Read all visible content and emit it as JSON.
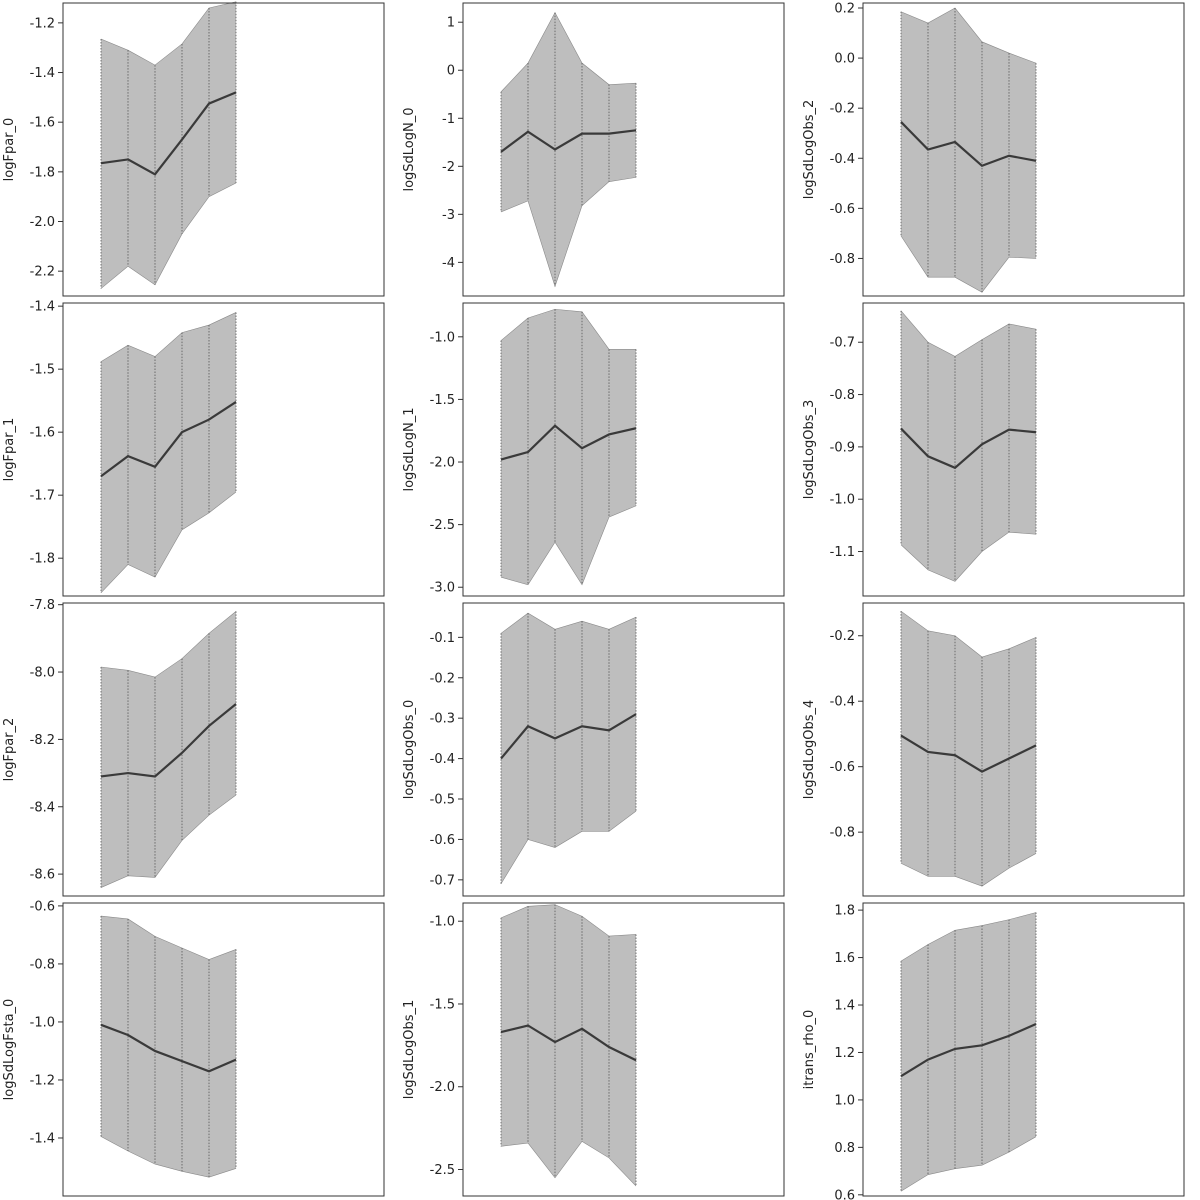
{
  "chart_data": [
    {
      "type": "line",
      "ylabel": "logFpar_0",
      "ylim": [
        -2.3,
        -1.12
      ],
      "yticks": [
        -2.2,
        -2.0,
        -1.8,
        -1.6,
        -1.4,
        -1.2
      ],
      "series": [
        {
          "mean": [
            -1.765,
            -1.75,
            -1.81,
            -1.67,
            -1.525,
            -1.48
          ],
          "lower": [
            -2.27,
            -2.18,
            -2.255,
            -2.05,
            -1.9,
            -1.845
          ],
          "upper": [
            -1.265,
            -1.31,
            -1.37,
            -1.285,
            -1.14,
            -1.115
          ]
        }
      ]
    },
    {
      "type": "line",
      "ylabel": "logSdLogN_0",
      "ylim": [
        -4.7,
        1.4
      ],
      "yticks": [
        -4,
        -3,
        -2,
        -1,
        0,
        1
      ],
      "series": [
        {
          "mean": [
            -1.7,
            -1.28,
            -1.65,
            -1.32,
            -1.32,
            -1.25
          ],
          "lower": [
            -2.95,
            -2.72,
            -4.5,
            -2.82,
            -2.32,
            -2.23
          ],
          "upper": [
            -0.45,
            0.15,
            1.2,
            0.15,
            -0.3,
            -0.27
          ]
        }
      ]
    },
    {
      "type": "line",
      "ylabel": "logSdLogObs_2",
      "ylim": [
        -0.95,
        0.22
      ],
      "yticks": [
        -0.8,
        -0.6,
        -0.4,
        -0.2,
        0.0,
        0.2
      ],
      "series": [
        {
          "mean": [
            -0.255,
            -0.365,
            -0.335,
            -0.43,
            -0.39,
            -0.41
          ],
          "lower": [
            -0.71,
            -0.875,
            -0.875,
            -0.935,
            -0.795,
            -0.8
          ],
          "upper": [
            0.185,
            0.14,
            0.2,
            0.065,
            0.02,
            -0.02
          ]
        }
      ]
    },
    {
      "type": "line",
      "ylabel": "logFpar_1",
      "ylim": [
        -1.86,
        -1.395
      ],
      "yticks": [
        -1.8,
        -1.7,
        -1.6,
        -1.5,
        -1.4
      ],
      "series": [
        {
          "mean": [
            -1.67,
            -1.638,
            -1.655,
            -1.6,
            -1.58,
            -1.552
          ],
          "lower": [
            -1.855,
            -1.81,
            -1.83,
            -1.755,
            -1.728,
            -1.695
          ],
          "upper": [
            -1.488,
            -1.462,
            -1.48,
            -1.442,
            -1.43,
            -1.41
          ]
        }
      ]
    },
    {
      "type": "line",
      "ylabel": "logSdLogN_1",
      "ylim": [
        -3.07,
        -0.73
      ],
      "yticks": [
        -3.0,
        -2.5,
        -2.0,
        -1.5,
        -1.0
      ],
      "series": [
        {
          "mean": [
            -1.98,
            -1.92,
            -1.71,
            -1.89,
            -1.78,
            -1.73
          ],
          "lower": [
            -2.92,
            -2.98,
            -2.64,
            -2.98,
            -2.44,
            -2.35
          ],
          "upper": [
            -1.03,
            -0.85,
            -0.78,
            -0.8,
            -1.1,
            -1.1
          ]
        }
      ]
    },
    {
      "type": "line",
      "ylabel": "logSdLogObs_3",
      "ylim": [
        -1.185,
        -0.625
      ],
      "yticks": [
        -1.1,
        -1.0,
        -0.9,
        -0.8,
        -0.7
      ],
      "series": [
        {
          "mean": [
            -0.865,
            -0.918,
            -0.94,
            -0.895,
            -0.867,
            -0.872
          ],
          "lower": [
            -1.087,
            -1.135,
            -1.157,
            -1.1,
            -1.063,
            -1.067
          ],
          "upper": [
            -0.64,
            -0.7,
            -0.727,
            -0.695,
            -0.665,
            -0.675
          ]
        }
      ]
    },
    {
      "type": "line",
      "ylabel": "logFpar_2",
      "ylim": [
        -8.665,
        -7.795
      ],
      "yticks": [
        -8.6,
        -8.4,
        -8.2,
        -8.0,
        -7.8
      ],
      "series": [
        {
          "mean": [
            -8.31,
            -8.3,
            -8.31,
            -8.24,
            -8.16,
            -8.095
          ],
          "lower": [
            -8.64,
            -8.605,
            -8.61,
            -8.5,
            -8.425,
            -8.365
          ],
          "upper": [
            -7.985,
            -7.995,
            -8.015,
            -7.96,
            -7.885,
            -7.82
          ]
        }
      ]
    },
    {
      "type": "line",
      "ylabel": "logSdLogObs_0",
      "ylim": [
        -0.74,
        -0.015
      ],
      "yticks": [
        -0.7,
        -0.6,
        -0.5,
        -0.4,
        -0.3,
        -0.2,
        -0.1
      ],
      "series": [
        {
          "mean": [
            -0.4,
            -0.32,
            -0.35,
            -0.32,
            -0.33,
            -0.29
          ],
          "lower": [
            -0.71,
            -0.6,
            -0.62,
            -0.58,
            -0.58,
            -0.53
          ],
          "upper": [
            -0.09,
            -0.04,
            -0.08,
            -0.06,
            -0.08,
            -0.05
          ]
        }
      ]
    },
    {
      "type": "line",
      "ylabel": "logSdLogObs_4",
      "ylim": [
        -0.995,
        -0.1
      ],
      "yticks": [
        -0.8,
        -0.6,
        -0.4,
        -0.2
      ],
      "series": [
        {
          "mean": [
            -0.505,
            -0.555,
            -0.565,
            -0.615,
            -0.575,
            -0.535
          ],
          "lower": [
            -0.895,
            -0.935,
            -0.935,
            -0.965,
            -0.91,
            -0.865
          ],
          "upper": [
            -0.125,
            -0.185,
            -0.2,
            -0.265,
            -0.24,
            -0.205
          ]
        }
      ]
    },
    {
      "type": "line",
      "ylabel": "logSdLogFsta_0",
      "ylim": [
        -1.6,
        -0.59
      ],
      "yticks": [
        -1.4,
        -1.2,
        -1.0,
        -0.8,
        -0.6
      ],
      "series": [
        {
          "mean": [
            -1.01,
            -1.045,
            -1.1,
            -1.135,
            -1.17,
            -1.13
          ],
          "lower": [
            -1.395,
            -1.445,
            -1.49,
            -1.515,
            -1.535,
            -1.505
          ],
          "upper": [
            -0.635,
            -0.645,
            -0.705,
            -0.745,
            -0.785,
            -0.75
          ]
        }
      ]
    },
    {
      "type": "line",
      "ylabel": "logSdLogObs_1",
      "ylim": [
        -2.66,
        -0.89
      ],
      "yticks": [
        -2.5,
        -2.0,
        -1.5,
        -1.0
      ],
      "series": [
        {
          "mean": [
            -1.67,
            -1.63,
            -1.73,
            -1.65,
            -1.76,
            -1.84
          ],
          "lower": [
            -2.36,
            -2.34,
            -2.55,
            -2.33,
            -2.43,
            -2.6
          ],
          "upper": [
            -0.98,
            -0.91,
            -0.9,
            -0.97,
            -1.09,
            -1.08
          ]
        }
      ]
    },
    {
      "type": "line",
      "ylabel": "itrans_rho_0",
      "ylim": [
        0.595,
        1.83
      ],
      "yticks": [
        0.6,
        0.8,
        1.0,
        1.2,
        1.4,
        1.6,
        1.8
      ],
      "series": [
        {
          "mean": [
            1.1,
            1.17,
            1.215,
            1.23,
            1.27,
            1.32
          ],
          "lower": [
            0.615,
            0.685,
            0.71,
            0.725,
            0.78,
            0.845
          ],
          "upper": [
            1.585,
            1.655,
            1.715,
            1.735,
            1.76,
            1.79
          ]
        }
      ]
    }
  ]
}
